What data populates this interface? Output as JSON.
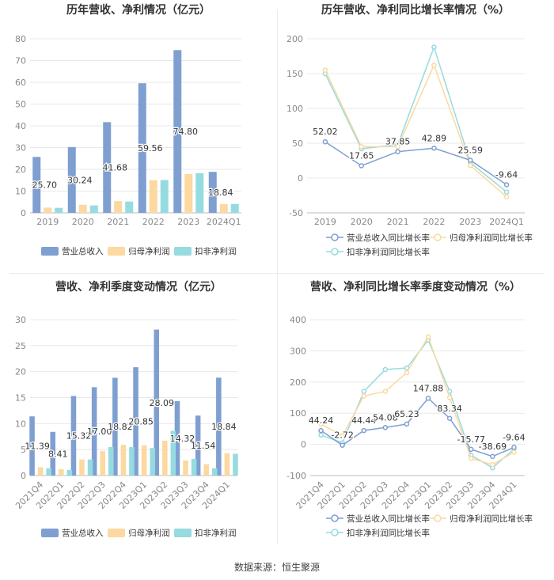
{
  "colors": {
    "revenue": "#7f9fd1",
    "net": "#fbd9a0",
    "deducted": "#96dbe0",
    "grid": "#e8e8e8",
    "axis": "#bbbbbb",
    "tick": "#888888"
  },
  "footer": {
    "source": "数据来源：恒生聚源"
  },
  "chart_data": [
    {
      "type": "bar",
      "title": "历年营收、净利情况（亿元）",
      "categories": [
        "2019",
        "2020",
        "2021",
        "2022",
        "2023",
        "2024Q1"
      ],
      "ylim": [
        0,
        80
      ],
      "yticks": [
        0,
        10,
        20,
        30,
        40,
        50,
        60,
        70,
        80
      ],
      "series": [
        {
          "name": "营业总收入",
          "values": [
            25.7,
            30.24,
            41.68,
            59.56,
            74.8,
            18.84
          ],
          "labels": [
            "25.70",
            "30.24",
            "41.68",
            "59.56",
            "74.80",
            "18.84"
          ]
        },
        {
          "name": "归母净利润",
          "values": [
            2.4,
            3.7,
            5.4,
            15.0,
            17.8,
            4.0
          ]
        },
        {
          "name": "扣非净利润",
          "values": [
            2.3,
            3.4,
            5.2,
            15.1,
            18.2,
            4.1
          ]
        }
      ],
      "legend": "bottom"
    },
    {
      "type": "line",
      "title": "历年营收、净利同比增长率情况（%）",
      "categories": [
        "2019",
        "2020",
        "2021",
        "2022",
        "2023",
        "2024Q1"
      ],
      "ylim": [
        -50,
        200
      ],
      "yticks": [
        -50,
        0,
        50,
        100,
        150,
        200
      ],
      "series": [
        {
          "name": "营业总收入同比增长率",
          "values": [
            52.02,
            17.65,
            37.85,
            42.89,
            25.59,
            -9.64
          ],
          "labels": [
            "52.02",
            "17.65",
            "37.85",
            "42.89",
            "25.59",
            "-9.64"
          ]
        },
        {
          "name": "归母净利润同比增长率",
          "values": [
            155,
            45,
            45,
            162,
            18,
            -27
          ]
        },
        {
          "name": "扣非净利润同比增长率",
          "values": [
            150,
            42,
            48,
            188,
            22,
            -20
          ]
        }
      ],
      "legend": "bottom"
    },
    {
      "type": "bar",
      "title": "营收、净利季度变动情况（亿元）",
      "categories": [
        "2021Q4",
        "2022Q1",
        "2022Q2",
        "2022Q3",
        "2022Q4",
        "2023Q1",
        "2023Q2",
        "2023Q3",
        "2023Q4",
        "2024Q1"
      ],
      "ylim": [
        0,
        30
      ],
      "yticks": [
        0,
        5,
        10,
        15,
        20,
        25,
        30
      ],
      "series": [
        {
          "name": "营业总收入",
          "values": [
            11.39,
            8.41,
            15.32,
            17.0,
            18.82,
            20.85,
            28.09,
            14.32,
            11.54,
            18.84
          ],
          "labels": [
            "11.39",
            "8.41",
            "15.32",
            "17.00",
            "18.82",
            "20.85",
            "28.09",
            "14.32",
            "11.54",
            "18.84"
          ]
        },
        {
          "name": "归母净利润",
          "values": [
            1.6,
            1.2,
            3.1,
            4.7,
            5.9,
            5.8,
            6.7,
            2.9,
            2.2,
            4.3
          ]
        },
        {
          "name": "扣非净利润",
          "values": [
            1.4,
            1.1,
            3.1,
            5.5,
            5.5,
            5.3,
            8.6,
            3.2,
            1.4,
            4.2
          ]
        }
      ],
      "legend": "bottom"
    },
    {
      "type": "line",
      "title": "营收、净利同比增长率季度变动情况（%）",
      "categories": [
        "2021Q4",
        "2022Q1",
        "2022Q2",
        "2022Q3",
        "2022Q4",
        "2023Q1",
        "2023Q2",
        "2023Q3",
        "2023Q4",
        "2024Q1"
      ],
      "ylim": [
        -100,
        400
      ],
      "yticks": [
        -100,
        0,
        100,
        200,
        300,
        400
      ],
      "series": [
        {
          "name": "营业总收入同比增长率",
          "values": [
            44.24,
            -2.72,
            44.44,
            54.08,
            65.23,
            147.88,
            83.34,
            -15.77,
            -38.69,
            -9.64
          ],
          "labels": [
            "44.24",
            "-2.72",
            "44.44",
            "54.08",
            "65.23",
            "147.88",
            "83.34",
            "-15.77",
            "-38.69",
            "-9.64"
          ]
        },
        {
          "name": "归母净利润同比增长率",
          "values": [
            65,
            28,
            155,
            170,
            230,
            345,
            150,
            -45,
            -65,
            -25
          ]
        },
        {
          "name": "扣非净利润同比增长率",
          "values": [
            30,
            5,
            170,
            240,
            245,
            335,
            170,
            -35,
            -75,
            -15
          ]
        }
      ],
      "legend": "bottom"
    }
  ]
}
